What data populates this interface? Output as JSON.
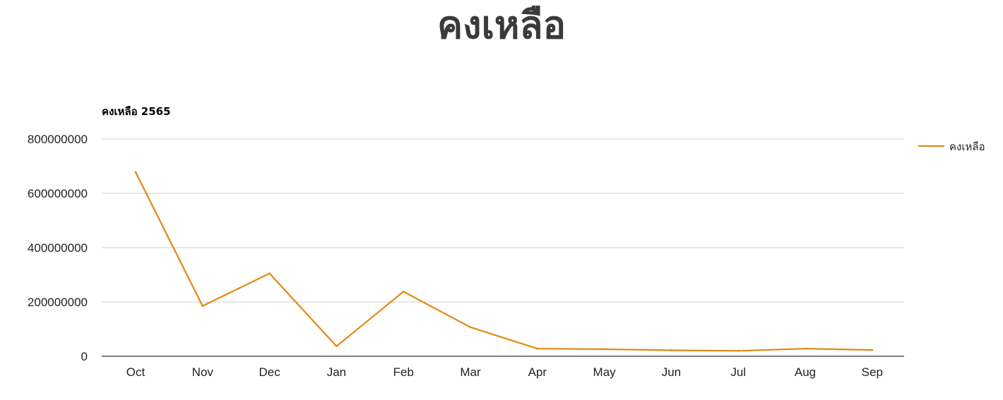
{
  "page": {
    "title": "คงเหลือ"
  },
  "chart_data": {
    "type": "line",
    "title": "คงเหลือ 2565",
    "xlabel": "",
    "ylabel": "",
    "categories": [
      "Oct",
      "Nov",
      "Dec",
      "Jan",
      "Feb",
      "Mar",
      "Apr",
      "May",
      "Jun",
      "Jul",
      "Aug",
      "Sep"
    ],
    "series": [
      {
        "name": "คงเหลือ",
        "color": "#e08a12",
        "values": [
          678000000,
          185000000,
          305000000,
          37000000,
          238000000,
          107000000,
          28000000,
          26000000,
          22000000,
          20000000,
          28000000,
          23000000
        ]
      }
    ],
    "y_ticks": [
      "0",
      "200000000",
      "400000000",
      "600000000",
      "800000000"
    ],
    "ylim": [
      0,
      800000000
    ],
    "grid": true,
    "legend_position": "right"
  }
}
